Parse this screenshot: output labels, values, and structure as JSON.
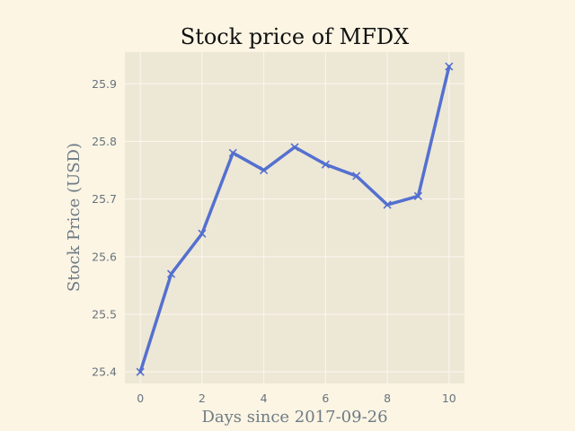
{
  "chart_data": {
    "type": "line",
    "title": "Stock price of MFDX",
    "xlabel": "Days since 2017-09-26",
    "ylabel": "Stock Price (USD)",
    "x": [
      0,
      1,
      2,
      3,
      4,
      5,
      6,
      7,
      8,
      9,
      10
    ],
    "series": [
      {
        "values": [
          25.4,
          25.57,
          25.64,
          25.78,
          25.75,
          25.79,
          25.76,
          25.74,
          25.69,
          25.705,
          25.93
        ]
      }
    ],
    "xlim": [
      -0.5,
      10.5
    ],
    "ylim": [
      25.38,
      25.955
    ],
    "xticks": [
      "0",
      "2",
      "4",
      "6",
      "8",
      "10"
    ],
    "yticks": [
      "25.4",
      "25.5",
      "25.6",
      "25.7",
      "25.8",
      "25.9"
    ],
    "grid": true,
    "marker": "x",
    "colors": {
      "figure_background": "#fcf5e4",
      "plot_background": "#ede7d6",
      "grid": "#fbf7ee",
      "line": "#5470cf"
    }
  }
}
